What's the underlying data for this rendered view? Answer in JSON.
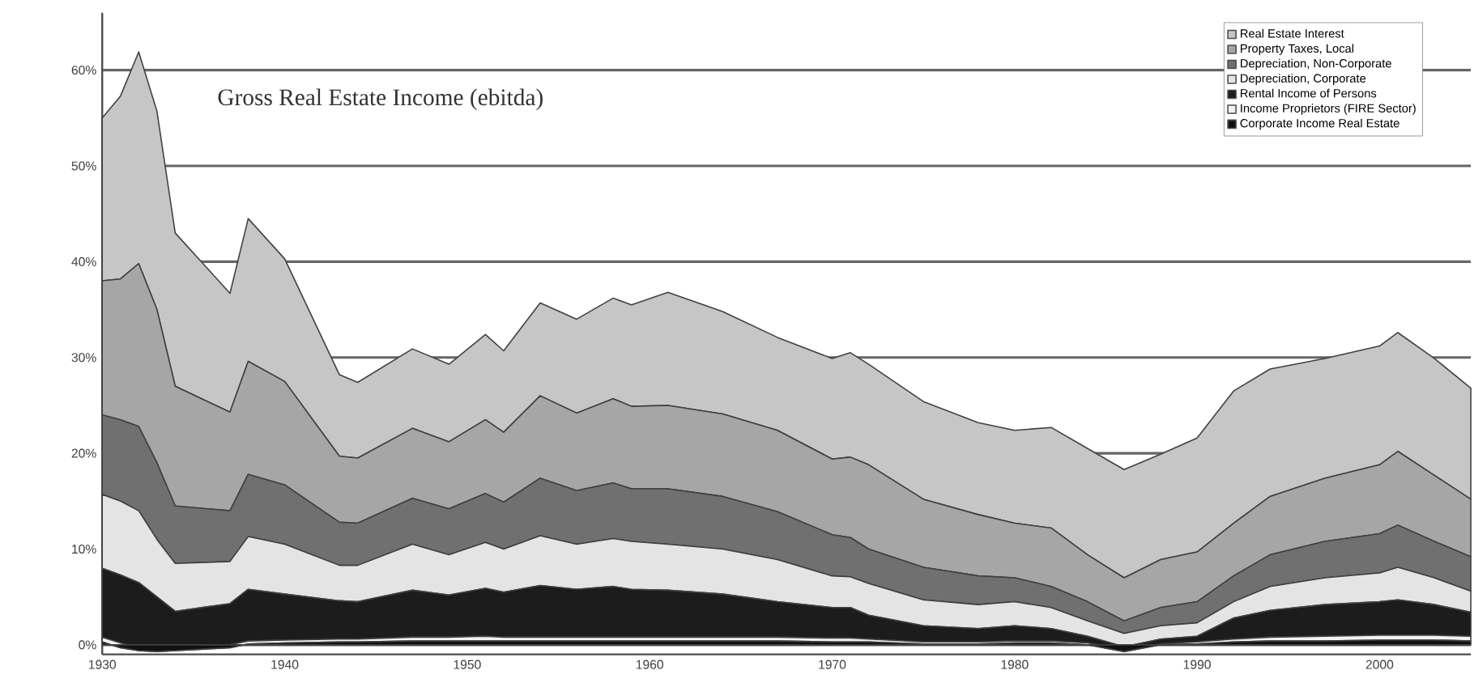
{
  "chart_data": {
    "type": "area",
    "title": "Gross Real Estate Income (ebitda)",
    "stacked": true,
    "x": [
      1930,
      1931,
      1932,
      1933,
      1934,
      1937,
      1938,
      1940,
      1943,
      1944,
      1947,
      1949,
      1951,
      1952,
      1954,
      1956,
      1958,
      1959,
      1961,
      1964,
      1967,
      1970,
      1971,
      1972,
      1975,
      1978,
      1980,
      1982,
      1984,
      1986,
      1988,
      1990,
      1992,
      1994,
      1997,
      2000,
      2001,
      2003,
      2005
    ],
    "series": [
      {
        "name": "Corporate Income Real Estate",
        "color": "#111111",
        "values": [
          0.3,
          -0.3,
          -0.6,
          -0.7,
          -0.6,
          -0.3,
          0.1,
          0.2,
          0.3,
          0.3,
          0.4,
          0.4,
          0.4,
          0.4,
          0.4,
          0.4,
          0.4,
          0.4,
          0.4,
          0.4,
          0.4,
          0.3,
          0.3,
          0.3,
          0.1,
          0.1,
          0.2,
          0.2,
          0,
          -0.7,
          0,
          0.1,
          0.3,
          0.4,
          0.4,
          0.5,
          0.5,
          0.5,
          0.4
        ]
      },
      {
        "name": "Income Proprietors (FIRE Sector)",
        "color": "#f2f2f2",
        "values": [
          0.5,
          0.5,
          0.3,
          0.2,
          0.2,
          0.3,
          0.3,
          0.3,
          0.3,
          0.3,
          0.4,
          0.4,
          0.5,
          0.4,
          0.4,
          0.4,
          0.4,
          0.4,
          0.4,
          0.4,
          0.4,
          0.4,
          0.4,
          0.3,
          0.2,
          0.2,
          0.2,
          0.2,
          0.2,
          0.2,
          0.1,
          0.2,
          0.3,
          0.4,
          0.5,
          0.5,
          0.5,
          0.5,
          0.5
        ]
      },
      {
        "name": "Rental Income of Persons",
        "color": "#1c1c1c",
        "values": [
          7.2,
          7.1,
          6.8,
          5.5,
          3.9,
          4.3,
          5.4,
          4.8,
          4,
          3.9,
          4.9,
          4.4,
          5,
          4.7,
          5.4,
          5,
          5.3,
          5,
          4.9,
          4.5,
          3.7,
          3.2,
          3.2,
          2.5,
          1.7,
          1.4,
          1.6,
          1.3,
          0.7,
          0.3,
          0.5,
          0.6,
          2.2,
          2.8,
          3.3,
          3.5,
          3.7,
          3.2,
          2.5
        ]
      },
      {
        "name": "Depreciation, Corporate",
        "color": "#e4e4e4",
        "values": [
          7.7,
          7.7,
          7.5,
          6,
          5,
          4.4,
          5.5,
          5.2,
          3.7,
          3.8,
          4.8,
          4.2,
          4.8,
          4.5,
          5.2,
          4.7,
          5,
          5,
          4.8,
          4.7,
          4.4,
          3.3,
          3.2,
          3.3,
          2.7,
          2.5,
          2.5,
          2.2,
          1.6,
          1.4,
          1.4,
          1.4,
          1.7,
          2.5,
          2.8,
          3,
          3.4,
          2.8,
          2.2
        ]
      },
      {
        "name": "Depreciation, Non-Corporate",
        "color": "#707070",
        "values": [
          8.3,
          8.5,
          8.8,
          8,
          6,
          5.3,
          6.5,
          6.2,
          4.5,
          4.4,
          4.8,
          4.8,
          5.1,
          4.9,
          6,
          5.6,
          5.8,
          5.5,
          5.8,
          5.5,
          5,
          4.3,
          4.1,
          3.6,
          3.4,
          3,
          2.5,
          2.2,
          2,
          1.3,
          1.9,
          2.2,
          2.7,
          3.3,
          3.8,
          4.1,
          4.4,
          3.8,
          3.6
        ]
      },
      {
        "name": "Property Taxes, Local",
        "color": "#a6a6a6",
        "values": [
          14,
          14.7,
          17,
          16,
          12.5,
          10.3,
          11.8,
          10.8,
          6.9,
          6.8,
          7.3,
          7,
          7.7,
          7.3,
          8.6,
          8.1,
          8.8,
          8.6,
          8.7,
          8.6,
          8.5,
          7.9,
          8.4,
          8.8,
          7.1,
          6.4,
          5.7,
          6.1,
          4.9,
          4.5,
          5,
          5.2,
          5.5,
          6.1,
          6.6,
          7.2,
          7.7,
          6.9,
          6
        ]
      },
      {
        "name": "Real Estate Interest",
        "color": "#c6c6c6",
        "values": [
          17,
          19.1,
          22.1,
          20.7,
          16,
          12.4,
          14.9,
          12.8,
          8.5,
          7.9,
          8.3,
          8.1,
          8.9,
          8.5,
          9.7,
          9.8,
          10.5,
          10.6,
          11.8,
          10.7,
          9.7,
          10.5,
          10.9,
          10.5,
          10.2,
          9.6,
          9.7,
          10.5,
          11.1,
          11.3,
          11,
          11.9,
          13.8,
          13.3,
          12.5,
          12.4,
          12.4,
          12.2,
          11.6
        ]
      }
    ],
    "xlim": [
      1930,
      2005
    ],
    "xticks": [
      1930,
      1940,
      1950,
      1960,
      1970,
      1980,
      1990,
      2000
    ],
    "ylim": [
      -1,
      66
    ],
    "yticks": [
      {
        "value": 0,
        "label": "0%"
      },
      {
        "value": 10,
        "label": "10%"
      },
      {
        "value": 20,
        "label": "20%"
      },
      {
        "value": 30,
        "label": "30%"
      },
      {
        "value": 40,
        "label": "40%"
      },
      {
        "value": 50,
        "label": "50%"
      },
      {
        "value": 60,
        "label": "60%"
      }
    ],
    "grid": "y",
    "legend": "top right"
  }
}
